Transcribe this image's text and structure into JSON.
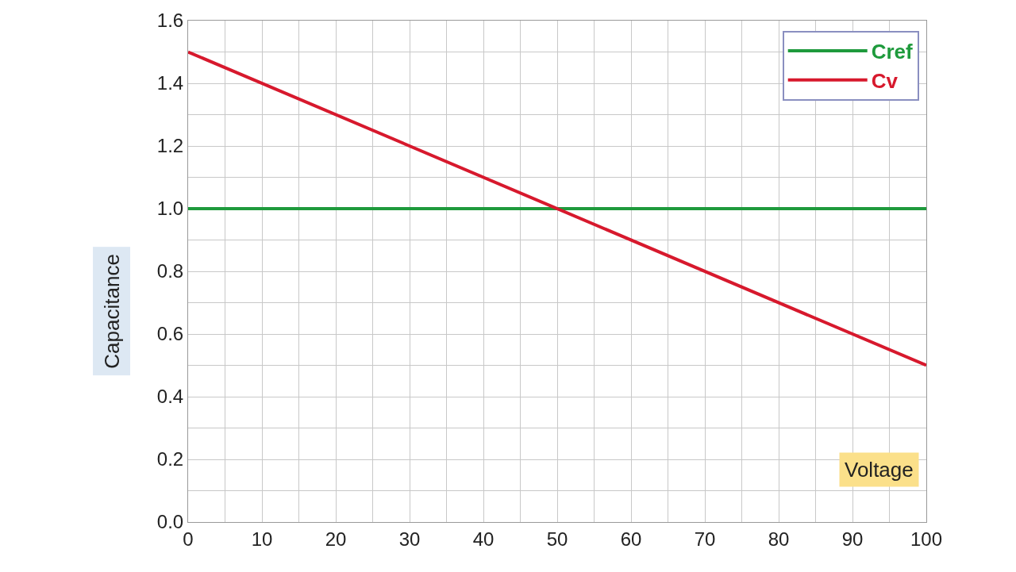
{
  "chart_data": {
    "type": "line",
    "xlabel": "Voltage",
    "ylabel": "Capacitance",
    "x": [
      0,
      100
    ],
    "series": [
      {
        "name": "Cref",
        "color": "#1e9a3c",
        "values": [
          1.0,
          1.0
        ]
      },
      {
        "name": "Cv",
        "color": "#d7192d",
        "values": [
          1.5,
          0.5
        ]
      }
    ],
    "xlim": [
      0,
      100
    ],
    "ylim": [
      0,
      1.6
    ],
    "xticks": [
      0,
      10,
      20,
      30,
      40,
      50,
      60,
      70,
      80,
      90,
      100
    ],
    "yticks": [
      {
        "value": 0,
        "label": "0.0"
      },
      0.2,
      0.4,
      0.6,
      0.8,
      {
        "value": 1,
        "label": "1.0"
      },
      1.2,
      1.4,
      1.6
    ],
    "grid": true,
    "legend": "top right",
    "marker": "none",
    "line_style": "solid"
  }
}
